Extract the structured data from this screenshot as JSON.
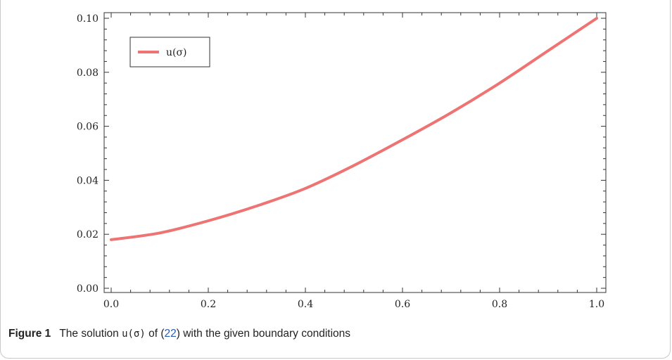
{
  "chart_data": {
    "type": "line",
    "title": "",
    "xlabel": "",
    "ylabel": "",
    "xlim": [
      0.0,
      1.0
    ],
    "ylim": [
      0.0,
      0.1
    ],
    "x_ticks": [
      "0.0",
      "0.2",
      "0.4",
      "0.6",
      "0.8",
      "1.0"
    ],
    "y_ticks": [
      "0.00",
      "0.02",
      "0.04",
      "0.06",
      "0.08",
      "0.10"
    ],
    "legend_position": "top-left",
    "series": [
      {
        "name": "u(σ)",
        "color": "#ee7373",
        "x": [
          0.0,
          0.1,
          0.2,
          0.3,
          0.4,
          0.5,
          0.6,
          0.7,
          0.8,
          0.9,
          1.0
        ],
        "y": [
          0.018,
          0.0205,
          0.025,
          0.0305,
          0.037,
          0.0455,
          0.055,
          0.065,
          0.076,
          0.088,
          0.1
        ]
      }
    ]
  },
  "caption": {
    "label": "Figure 1",
    "text_before": "The solution ",
    "symbol": "u(σ)",
    "text_middle": " of (",
    "ref": "22",
    "text_after": ") with the given boundary conditions"
  }
}
